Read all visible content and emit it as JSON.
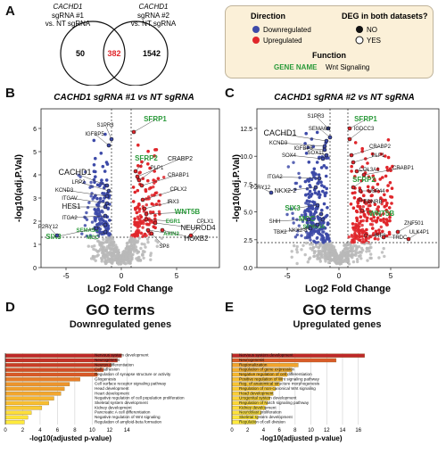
{
  "panel_letters": {
    "a": "A",
    "b": "B",
    "c": "C",
    "d": "D",
    "e": "E"
  },
  "venn": {
    "left_label_1": "CACHD1",
    "left_label_2": "sgRNA #1",
    "left_label_3": "vs. NT sgRNA",
    "right_label_1": "CACHD1",
    "right_label_2": "sgRNA #2",
    "right_label_3": "vs. NT sgRNA",
    "left_only": "50",
    "overlap": "382",
    "right_only": "1542"
  },
  "legend": {
    "direction_title": "Direction",
    "deg_title": "DEG in both datasets?",
    "down": "Downregulated",
    "up": "Upregulated",
    "no": "NO",
    "yes": "YES",
    "function_title": "Function",
    "gene_name": "GENE NAME",
    "wnt": "Wnt Signaling"
  },
  "colors": {
    "down": "#3d4aa8",
    "up": "#e0262b",
    "ns": "#b9b9b9",
    "wnt": "#2a9a3a"
  },
  "volcano_b": {
    "title": "CACHD1 sgRNA #1 vs NT sgRNA",
    "xlabel": "Log2 Fold Change",
    "ylabel": "-log10(adj.P.Val)",
    "xticks": [
      "-5",
      "0",
      "5"
    ],
    "yticks": [
      "0",
      "1",
      "2",
      "3",
      "4",
      "5",
      "6"
    ],
    "genes": [
      "S1PR3",
      "IGFBP5",
      "SFRP1",
      "SFRP2",
      "CRABP2",
      "PLP1",
      "CRABP1",
      "CACHD1",
      "LRP2",
      "KCND3",
      "CPLX2",
      "HES1",
      "ITGAV",
      "IRX3",
      "WNT5B",
      "ITGA2",
      "EGR1",
      "NEUROD4",
      "SEMA5A",
      "SIX3",
      "MCC",
      "AXIN2",
      "HOXB2",
      "P2RY12",
      "SP8",
      "CPLX1"
    ]
  },
  "volcano_c": {
    "title": "CACHD1 sgRNA #2 vs NT sgRNA",
    "xlabel": "Log2 Fold Change",
    "ylabel": "-log10(adj.P.Val)",
    "xticks": [
      "-5",
      "0",
      "5"
    ],
    "yticks": [
      "0.0",
      "2.5",
      "5.0",
      "7.5",
      "10.0",
      "12.5"
    ],
    "genes": [
      "S1PR3",
      "SFRP1",
      "SEMA6A",
      "IGDCC3",
      "CACHD1",
      "KCND3",
      "IGFBP5",
      "SOX11",
      "CRABP2",
      "SOX4",
      "PLP1",
      "COL3A1",
      "CRABP1",
      "ITGA2",
      "P2RY12",
      "NKX2-2",
      "SFRP2",
      "USP44",
      "SIX3",
      "EDNRB",
      "WNT5B",
      "MCC",
      "SEMA5A",
      "SHH",
      "NKX2-8",
      "ZNF501",
      "TBX2",
      "IRF8",
      "TRDC",
      "ULK4P1"
    ]
  },
  "go_d": {
    "title": "GO terms",
    "subtitle": "Downregulated genes",
    "xlabel": "-log10(adjusted p-value)",
    "xticks": [
      "0",
      "2",
      "4",
      "6",
      "8",
      "10",
      "12",
      "14"
    ],
    "terms": [
      "Nervous system development",
      "Neurogenesis",
      "Neuron differentiation",
      "Cell adhesion",
      "Regulation of synapse structure or activity",
      "Gliogenesis",
      "Cell surface receptor signaling pathway",
      "Head development",
      "Heart development",
      "Negative regulation of cell population proliferation",
      "Skeletal system development",
      "Kidney development",
      "Pancreatic A cell differentiation",
      "Negative regulation of Wnt signaling",
      "Regulation of amyloid-beta formation"
    ],
    "values": [
      13.4,
      12.9,
      12.2,
      11.3,
      10.6,
      8.6,
      7.4,
      6.8,
      6.4,
      5.6,
      5.0,
      4.2,
      3.0,
      2.6,
      2.2
    ]
  },
  "go_e": {
    "title": "GO terms",
    "subtitle": "Upregulated genes",
    "xlabel": "-log10(adjusted p-value)",
    "xticks": [
      "0",
      "2",
      "4",
      "6",
      "8",
      "10",
      "12",
      "14",
      "16"
    ],
    "terms": [
      "Nervous system development",
      "Neurogenesis",
      "Regionalization",
      "Regulation of gene expression",
      "Negative regulation of cell differentiation",
      "Positive regulation of Wnt signaling pathway",
      "Reg. of anatomical structure morphogenesis",
      "Regulation of non-canonical Wnt signaling",
      "Head development",
      "Urogenital system development",
      "Regulation of Notch signaling pathway",
      "Kidney development",
      "Neuroblast proliferation",
      "Skeletal system development",
      "Regulation of cell division"
    ],
    "values": [
      16.8,
      13.2,
      8.4,
      7.6,
      7.0,
      6.4,
      6.0,
      5.5,
      5.2,
      4.8,
      4.5,
      4.2,
      3.7,
      3.3,
      3.0
    ]
  }
}
